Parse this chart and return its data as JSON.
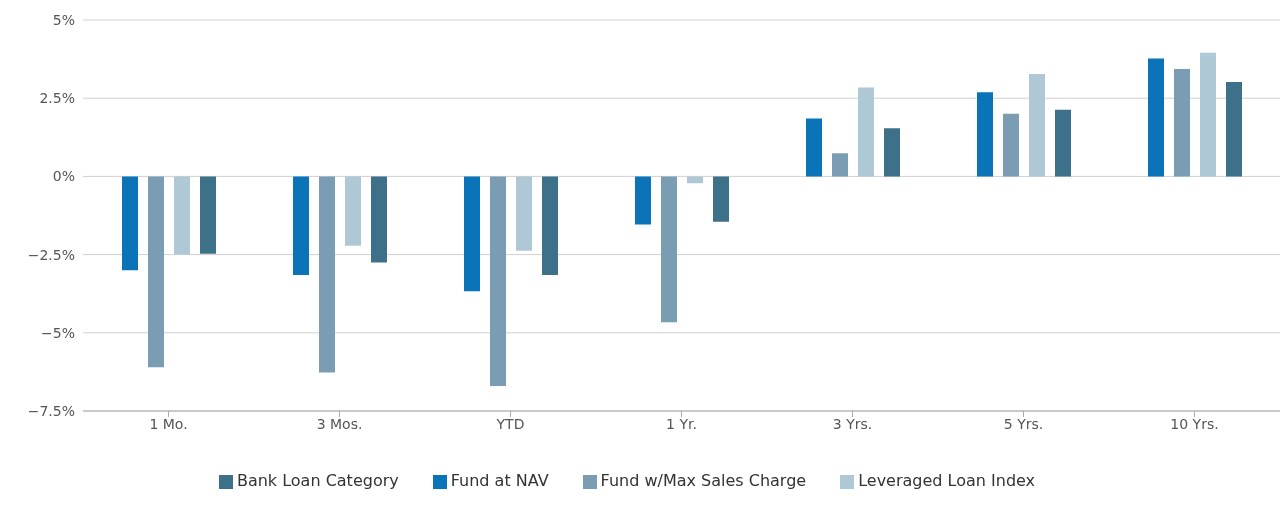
{
  "chart_data": {
    "type": "bar",
    "categories": [
      "1 Mo.",
      "3 Mos.",
      "YTD",
      "1 Yr.",
      "3 Yrs.",
      "5 Yrs.",
      "10 Yrs."
    ],
    "series": [
      {
        "name": "Fund at NAV",
        "color": "#0b74b8",
        "values": [
          -3.0,
          -3.15,
          -3.67,
          -1.54,
          1.85,
          2.69,
          3.77
        ]
      },
      {
        "name": "Fund w/Max Sales Charge",
        "color": "#7a9db3",
        "values": [
          -6.1,
          -6.27,
          -6.7,
          -4.66,
          0.74,
          2.0,
          3.43
        ]
      },
      {
        "name": "Leveraged Loan Index",
        "color": "#afc8d6",
        "values": [
          -2.5,
          -2.22,
          -2.38,
          -0.22,
          2.84,
          3.27,
          3.95
        ]
      },
      {
        "name": "Bank Loan Category",
        "color": "#3c7189",
        "values": [
          -2.47,
          -2.75,
          -3.15,
          -1.45,
          1.54,
          2.13,
          3.02
        ]
      }
    ],
    "ylim": [
      -7.5,
      5
    ],
    "yticks": [
      {
        "value": -7.5,
        "label": "−7.5%"
      },
      {
        "value": -5,
        "label": "−5%"
      },
      {
        "value": -2.5,
        "label": "−2.5%"
      },
      {
        "value": 0,
        "label": "0%"
      },
      {
        "value": 2.5,
        "label": "2.5%"
      },
      {
        "value": 5,
        "label": "5%"
      }
    ],
    "grid": "y",
    "legend": "bottom"
  }
}
